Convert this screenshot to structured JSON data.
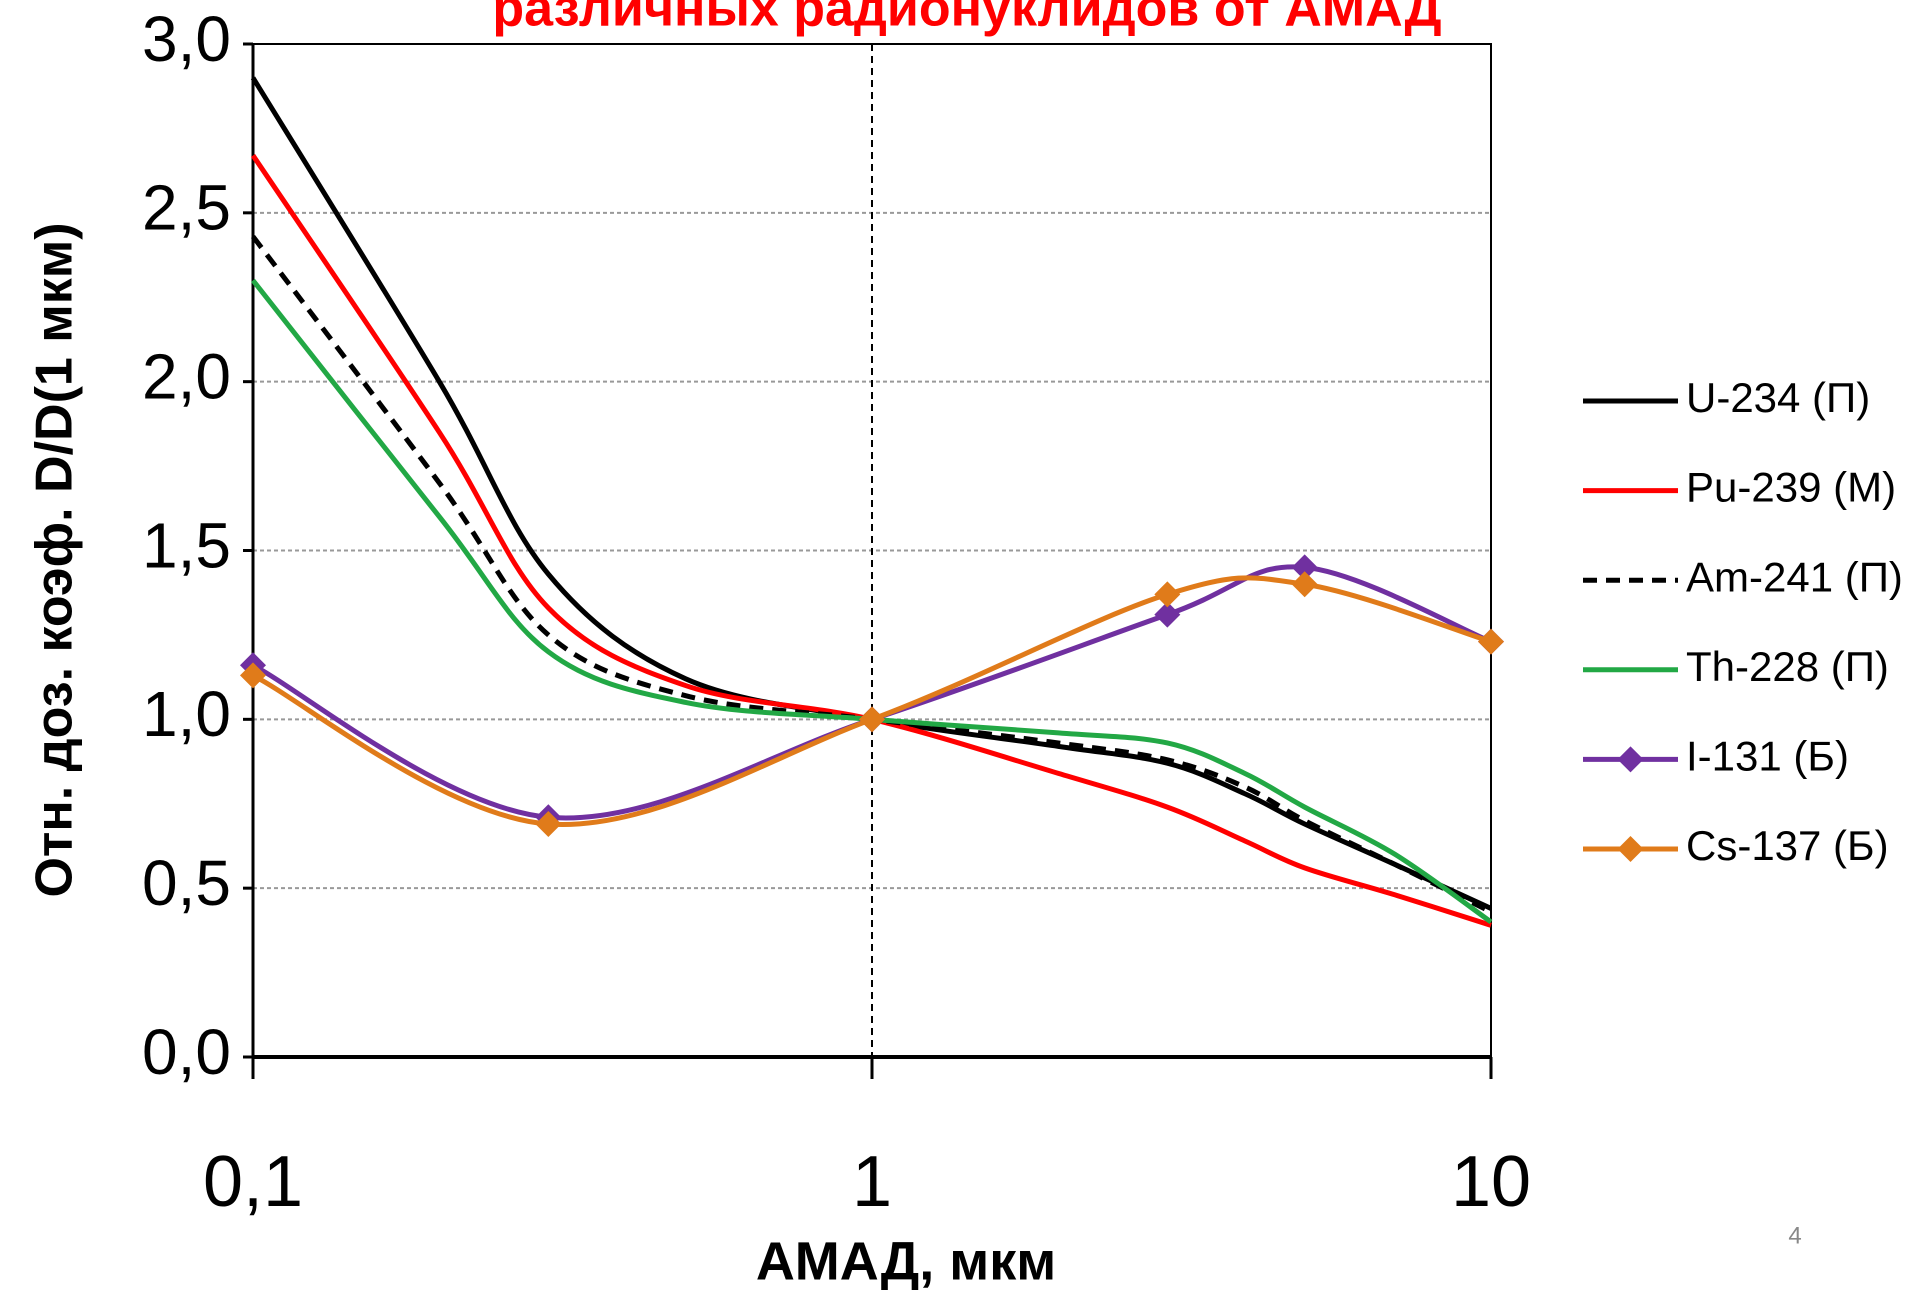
{
  "chart_data": {
    "type": "line",
    "title": "различных радионуклидов от АМАД",
    "x_label": "АМАД, мкм",
    "y_label": "Отн. доз. коэф. D/D(1 мкм)",
    "page_number": "4",
    "xscale": "log",
    "xlim": [
      0.1,
      10
    ],
    "xticks": [
      {
        "value": 0.1,
        "label": "0,1"
      },
      1,
      10
    ],
    "ylim": [
      0,
      3
    ],
    "yticks": [
      {
        "value": 0,
        "label": "0,0"
      },
      {
        "value": 0.5,
        "label": "0,5"
      },
      {
        "value": 1,
        "label": "1,0"
      },
      {
        "value": 1.5,
        "label": "1,5"
      },
      {
        "value": 2,
        "label": "2,0"
      },
      {
        "value": 2.5,
        "label": "2,5"
      },
      {
        "value": 3,
        "label": "3,0"
      }
    ],
    "grid": true,
    "legend": "right",
    "series": [
      {
        "name": "U-234 (П)",
        "color": "#000000",
        "dash": false,
        "marker": false,
        "x": [
          0.1,
          0.2,
          0.3,
          0.5,
          1,
          2,
          3,
          4,
          5,
          7,
          10
        ],
        "values": [
          2.9,
          2.0,
          1.43,
          1.12,
          1.0,
          0.92,
          0.87,
          0.78,
          0.69,
          0.57,
          0.44
        ]
      },
      {
        "name": "Pu-239 (М)",
        "color": "#ff0000",
        "dash": false,
        "marker": false,
        "x": [
          0.1,
          0.2,
          0.3,
          0.5,
          1,
          2,
          3,
          4,
          5,
          7,
          10
        ],
        "values": [
          2.67,
          1.85,
          1.33,
          1.1,
          1.0,
          0.84,
          0.74,
          0.64,
          0.56,
          0.48,
          0.39
        ]
      },
      {
        "name": "Am-241 (П)",
        "color": "#000000",
        "dash": true,
        "marker": false,
        "x": [
          0.1,
          0.2,
          0.3,
          0.5,
          1,
          2,
          3,
          4,
          5,
          7,
          10
        ],
        "values": [
          2.43,
          1.7,
          1.25,
          1.07,
          1.0,
          0.93,
          0.88,
          0.8,
          0.7,
          0.57,
          0.43
        ]
      },
      {
        "name": "Th-228 (П)",
        "color": "#22a845",
        "dash": false,
        "marker": false,
        "x": [
          0.1,
          0.2,
          0.3,
          0.5,
          1,
          2,
          3,
          4,
          5,
          7,
          10
        ],
        "values": [
          2.3,
          1.6,
          1.2,
          1.05,
          1.0,
          0.96,
          0.93,
          0.84,
          0.74,
          0.6,
          0.4
        ]
      },
      {
        "name": "I-131 (Б)",
        "color": "#7030a0",
        "dash": false,
        "marker": true,
        "x": [
          0.1,
          0.3,
          1,
          3,
          5,
          10
        ],
        "values": [
          1.16,
          0.71,
          1.0,
          1.31,
          1.45,
          1.23
        ]
      },
      {
        "name": "Cs-137 (Б)",
        "color": "#e07b1a",
        "dash": false,
        "marker": true,
        "x": [
          0.1,
          0.3,
          1,
          3,
          5,
          10
        ],
        "values": [
          1.13,
          0.69,
          1.0,
          1.37,
          1.4,
          1.23
        ]
      }
    ]
  }
}
